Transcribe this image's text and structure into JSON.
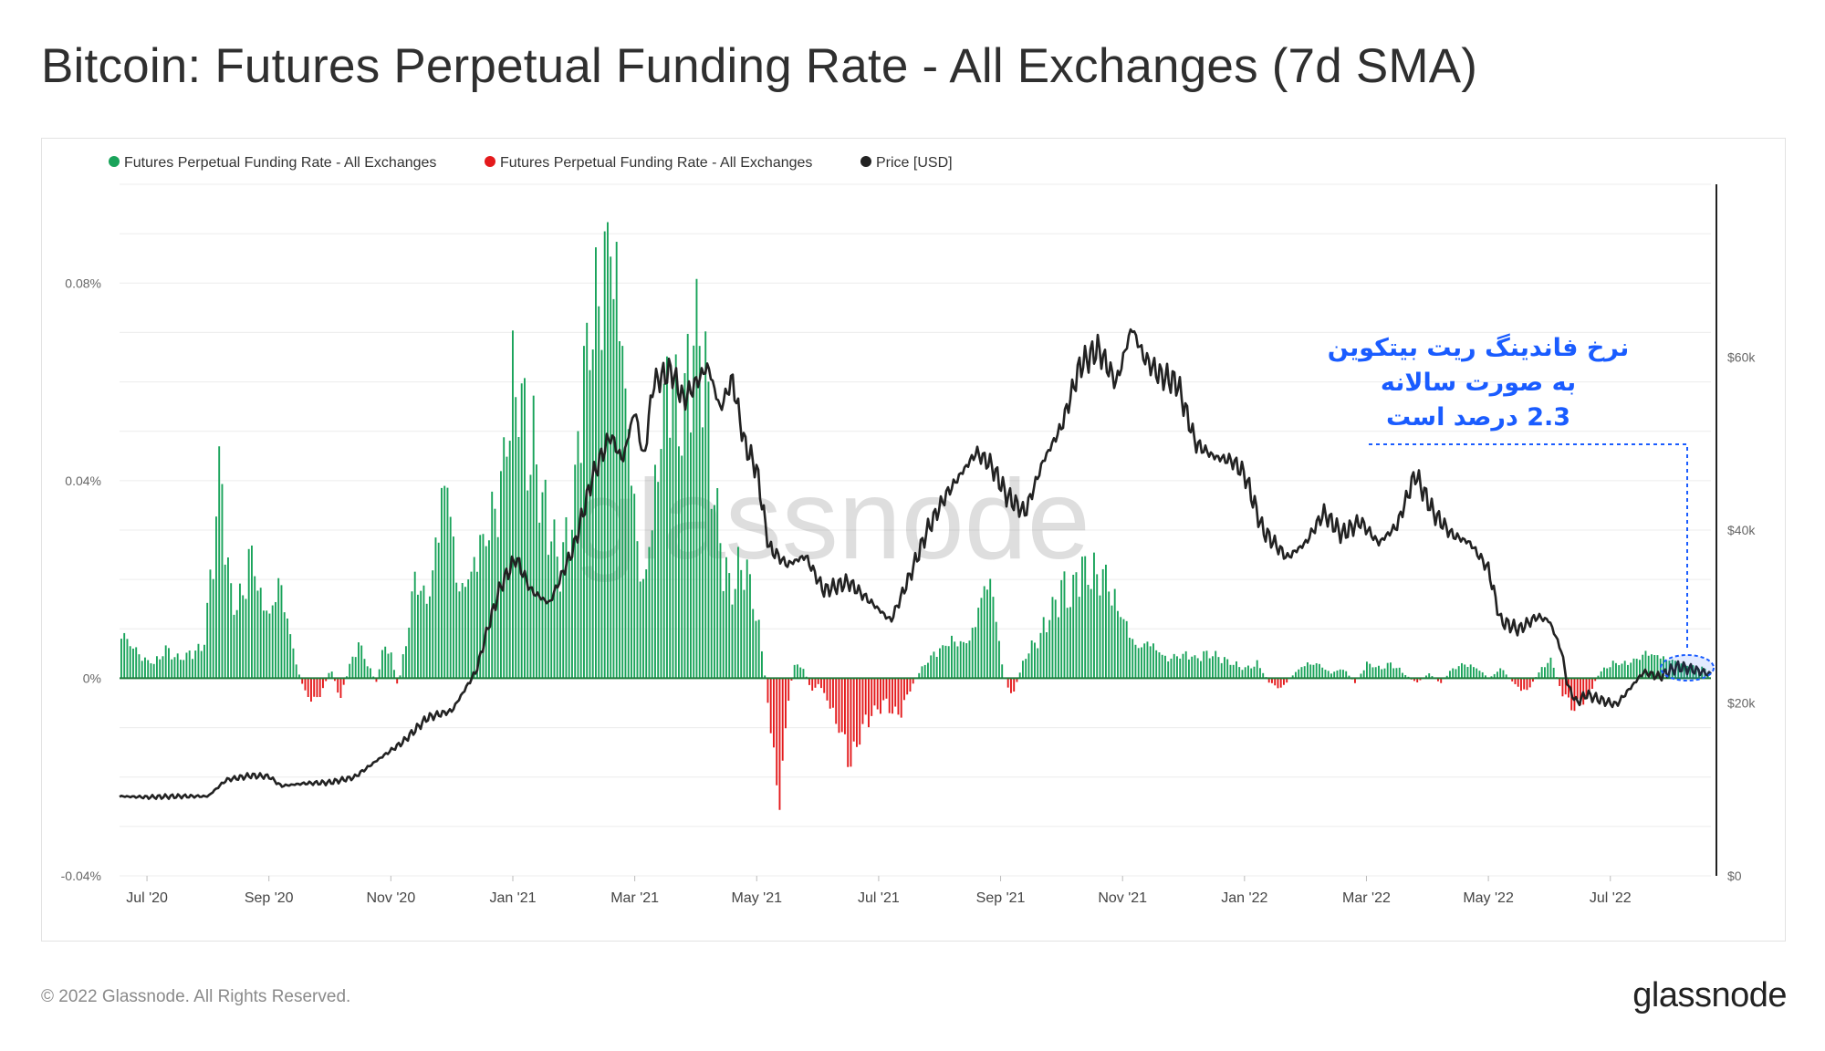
{
  "title": "Bitcoin: Futures Perpetual Funding Rate - All Exchanges (7d SMA)",
  "footer": {
    "copyright": "© 2022 Glassnode. All Rights Reserved.",
    "logo": "glassnode"
  },
  "watermark": "glassnode",
  "annotation": {
    "lines": [
      "نرخ فاندینگ ریت بیتکوین",
      "به صورت سالانه",
      "2.3 درصد است"
    ],
    "color": "#1a5cff"
  },
  "colors": {
    "positive": "#19a35a",
    "negative": "#e41a1c",
    "price": "#222222",
    "grid": "#ececec"
  },
  "chart_data": {
    "type": "bar+line",
    "title": "Bitcoin: Futures Perpetual Funding Rate - All Exchanges (7d SMA)",
    "legend": [
      {
        "label": "Futures Perpetual Funding Rate - All Exchanges",
        "color": "#19a35a"
      },
      {
        "label": "Futures Perpetual Funding Rate - All Exchanges",
        "color": "#e41a1c"
      },
      {
        "label": "Price [USD]",
        "color": "#222222"
      }
    ],
    "legend_position": "top-left",
    "x_ticks": [
      "Jul '20",
      "Sep '20",
      "Nov '20",
      "Jan '21",
      "Mar '21",
      "May '21",
      "Jul '21",
      "Sep '21",
      "Nov '21",
      "Jan '22",
      "Mar '22",
      "May '22",
      "Jul '22"
    ],
    "x_tick_months": [
      1,
      3,
      5,
      7,
      9,
      11,
      13,
      15,
      17,
      19,
      21,
      23,
      25
    ],
    "x_range_months": [
      0.55,
      26.65
    ],
    "y_left": {
      "ticks": [
        "0.08%",
        "0.04%",
        "0%",
        "-0.04%"
      ],
      "tick_values": [
        0.08,
        0.04,
        0,
        -0.04
      ],
      "range": [
        -0.04,
        0.1
      ],
      "unit": "%"
    },
    "y_right": {
      "ticks": [
        "$60k",
        "$40k",
        "$20k",
        "$0"
      ],
      "tick_values": [
        60000,
        40000,
        20000,
        0
      ],
      "range": [
        0,
        80000
      ]
    },
    "funding_rate_series": {
      "name": "Futures Perpetual Funding Rate - All Exchanges (7d SMA, %)",
      "anchors_month_value": [
        [
          0.55,
          0.009
        ],
        [
          0.7,
          0.007
        ],
        [
          0.9,
          0.004
        ],
        [
          1.1,
          0.003
        ],
        [
          1.3,
          0.006
        ],
        [
          1.5,
          0.004
        ],
        [
          1.7,
          0.005
        ],
        [
          1.9,
          0.006
        ],
        [
          2.0,
          0.015
        ],
        [
          2.1,
          0.03
        ],
        [
          2.2,
          0.044
        ],
        [
          2.3,
          0.022
        ],
        [
          2.45,
          0.014
        ],
        [
          2.6,
          0.02
        ],
        [
          2.7,
          0.026
        ],
        [
          2.85,
          0.016
        ],
        [
          3.0,
          0.012
        ],
        [
          3.15,
          0.019
        ],
        [
          3.3,
          0.011
        ],
        [
          3.45,
          0.002
        ],
        [
          3.55,
          -0.002
        ],
        [
          3.7,
          -0.005
        ],
        [
          3.85,
          -0.003
        ],
        [
          4.0,
          0.002
        ],
        [
          4.15,
          -0.004
        ],
        [
          4.3,
          0.002
        ],
        [
          4.45,
          0.007
        ],
        [
          4.6,
          0.003
        ],
        [
          4.75,
          -0.001
        ],
        [
          4.9,
          0.008
        ],
        [
          5.0,
          0.004
        ],
        [
          5.1,
          -0.002
        ],
        [
          5.3,
          0.012
        ],
        [
          5.4,
          0.022
        ],
        [
          5.5,
          0.015
        ],
        [
          5.65,
          0.018
        ],
        [
          5.8,
          0.035
        ],
        [
          5.9,
          0.043
        ],
        [
          6.05,
          0.022
        ],
        [
          6.15,
          0.018
        ],
        [
          6.3,
          0.022
        ],
        [
          6.45,
          0.026
        ],
        [
          6.6,
          0.03
        ],
        [
          6.75,
          0.034
        ],
        [
          6.85,
          0.044
        ],
        [
          6.95,
          0.055
        ],
        [
          7.05,
          0.062
        ],
        [
          7.2,
          0.05
        ],
        [
          7.35,
          0.046
        ],
        [
          7.5,
          0.034
        ],
        [
          7.6,
          0.03
        ],
        [
          7.75,
          0.022
        ],
        [
          7.9,
          0.028
        ],
        [
          8.0,
          0.036
        ],
        [
          8.1,
          0.055
        ],
        [
          8.2,
          0.068
        ],
        [
          8.3,
          0.074
        ],
        [
          8.4,
          0.08
        ],
        [
          8.5,
          0.086
        ],
        [
          8.6,
          0.091
        ],
        [
          8.7,
          0.078
        ],
        [
          8.8,
          0.062
        ],
        [
          8.95,
          0.038
        ],
        [
          9.05,
          0.022
        ],
        [
          9.15,
          0.018
        ],
        [
          9.3,
          0.035
        ],
        [
          9.45,
          0.055
        ],
        [
          9.6,
          0.065
        ],
        [
          9.7,
          0.05
        ],
        [
          9.8,
          0.058
        ],
        [
          9.9,
          0.064
        ],
        [
          10.05,
          0.07
        ],
        [
          10.15,
          0.058
        ],
        [
          10.3,
          0.035
        ],
        [
          10.45,
          0.022
        ],
        [
          10.6,
          0.018
        ],
        [
          10.75,
          0.025
        ],
        [
          10.9,
          0.018
        ],
        [
          11.05,
          0.008
        ],
        [
          11.2,
          -0.008
        ],
        [
          11.3,
          -0.02
        ],
        [
          11.37,
          -0.023
        ],
        [
          11.5,
          -0.005
        ],
        [
          11.6,
          0.003
        ],
        [
          11.75,
          0.002
        ],
        [
          11.9,
          -0.003
        ],
        [
          12.0,
          -0.001
        ],
        [
          12.2,
          -0.006
        ],
        [
          12.4,
          -0.012
        ],
        [
          12.55,
          -0.017
        ],
        [
          12.7,
          -0.01
        ],
        [
          12.9,
          -0.007
        ],
        [
          13.1,
          -0.005
        ],
        [
          13.3,
          -0.008
        ],
        [
          13.55,
          -0.001
        ],
        [
          13.75,
          0.003
        ],
        [
          14.0,
          0.006
        ],
        [
          14.2,
          0.008
        ],
        [
          14.4,
          0.007
        ],
        [
          14.55,
          0.01
        ],
        [
          14.75,
          0.02
        ],
        [
          14.9,
          0.014
        ],
        [
          15.0,
          0.003
        ],
        [
          15.1,
          -0.002
        ],
        [
          15.2,
          -0.003
        ],
        [
          15.4,
          0.005
        ],
        [
          15.6,
          0.008
        ],
        [
          15.8,
          0.013
        ],
        [
          16.0,
          0.018
        ],
        [
          16.15,
          0.016
        ],
        [
          16.3,
          0.023
        ],
        [
          16.45,
          0.021
        ],
        [
          16.6,
          0.022
        ],
        [
          16.75,
          0.02
        ],
        [
          16.9,
          0.014
        ],
        [
          17.0,
          0.012
        ],
        [
          17.2,
          0.006
        ],
        [
          17.45,
          0.007
        ],
        [
          17.7,
          0.004
        ],
        [
          18.0,
          0.005
        ],
        [
          18.2,
          0.004
        ],
        [
          18.4,
          0.005
        ],
        [
          18.6,
          0.004
        ],
        [
          18.8,
          0.003
        ],
        [
          19.0,
          0.002
        ],
        [
          19.2,
          0.003
        ],
        [
          19.4,
          -0.001
        ],
        [
          19.6,
          -0.002
        ],
        [
          19.8,
          0.001
        ],
        [
          20.0,
          0.003
        ],
        [
          20.2,
          0.003
        ],
        [
          20.4,
          0.001
        ],
        [
          20.6,
          0.002
        ],
        [
          20.8,
          -0.001
        ],
        [
          21.0,
          0.003
        ],
        [
          21.2,
          0.002
        ],
        [
          21.4,
          0.003
        ],
        [
          21.6,
          0.001
        ],
        [
          21.8,
          -0.001
        ],
        [
          22.0,
          0.001
        ],
        [
          22.2,
          -0.001
        ],
        [
          22.4,
          0.002
        ],
        [
          22.6,
          0.003
        ],
        [
          22.8,
          0.002
        ],
        [
          23.0,
          0.0
        ],
        [
          23.2,
          0.002
        ],
        [
          23.4,
          -0.001
        ],
        [
          23.6,
          -0.003
        ],
        [
          23.8,
          0.001
        ],
        [
          24.0,
          0.004
        ],
        [
          24.2,
          -0.003
        ],
        [
          24.4,
          -0.006
        ],
        [
          24.6,
          -0.004
        ],
        [
          24.8,
          0.001
        ],
        [
          25.0,
          0.003
        ],
        [
          25.3,
          0.003
        ],
        [
          25.6,
          0.005
        ],
        [
          25.9,
          0.004
        ],
        [
          26.2,
          0.003
        ],
        [
          26.5,
          0.002
        ],
        [
          26.65,
          0.001
        ]
      ],
      "peak": {
        "month": 8.6,
        "value": 0.091
      },
      "trough": {
        "month": 11.37,
        "value": -0.023
      }
    },
    "price_series": {
      "name": "Price [USD]",
      "anchors_month_value": [
        [
          0.55,
          9200
        ],
        [
          1.0,
          9100
        ],
        [
          1.5,
          9200
        ],
        [
          2.0,
          9200
        ],
        [
          2.3,
          11100
        ],
        [
          2.7,
          11600
        ],
        [
          3.0,
          11500
        ],
        [
          3.2,
          10400
        ],
        [
          3.6,
          10700
        ],
        [
          4.0,
          10800
        ],
        [
          4.4,
          11400
        ],
        [
          4.8,
          13500
        ],
        [
          5.2,
          15500
        ],
        [
          5.6,
          18300
        ],
        [
          6.0,
          19100
        ],
        [
          6.4,
          23700
        ],
        [
          6.6,
          28900
        ],
        [
          6.8,
          33500
        ],
        [
          7.05,
          36800
        ],
        [
          7.3,
          33000
        ],
        [
          7.6,
          31500
        ],
        [
          8.0,
          38000
        ],
        [
          8.3,
          46000
        ],
        [
          8.6,
          51000
        ],
        [
          8.8,
          48000
        ],
        [
          9.0,
          54000
        ],
        [
          9.15,
          48000
        ],
        [
          9.3,
          57000
        ],
        [
          9.6,
          58500
        ],
        [
          9.8,
          55000
        ],
        [
          10.2,
          59000
        ],
        [
          10.4,
          54000
        ],
        [
          10.6,
          57500
        ],
        [
          10.8,
          50000
        ],
        [
          11.0,
          47000
        ],
        [
          11.2,
          38000
        ],
        [
          11.5,
          36000
        ],
        [
          11.8,
          37000
        ],
        [
          12.1,
          33000
        ],
        [
          12.5,
          34000
        ],
        [
          12.9,
          31500
        ],
        [
          13.2,
          29500
        ],
        [
          13.5,
          34500
        ],
        [
          13.8,
          40000
        ],
        [
          14.1,
          44000
        ],
        [
          14.4,
          47000
        ],
        [
          14.6,
          49000
        ],
        [
          14.85,
          47500
        ],
        [
          15.1,
          44000
        ],
        [
          15.4,
          42000
        ],
        [
          15.7,
          48000
        ],
        [
          16.0,
          52000
        ],
        [
          16.3,
          59000
        ],
        [
          16.6,
          61000
        ],
        [
          16.9,
          57000
        ],
        [
          17.15,
          63500
        ],
        [
          17.35,
          60000
        ],
        [
          17.6,
          58000
        ],
        [
          17.9,
          57000
        ],
        [
          18.2,
          50000
        ],
        [
          18.5,
          48500
        ],
        [
          18.8,
          48000
        ],
        [
          19.0,
          46500
        ],
        [
          19.3,
          40000
        ],
        [
          19.7,
          36800
        ],
        [
          20.0,
          38500
        ],
        [
          20.3,
          42000
        ],
        [
          20.6,
          39500
        ],
        [
          20.9,
          41000
        ],
        [
          21.2,
          38500
        ],
        [
          21.5,
          40500
        ],
        [
          21.8,
          46500
        ],
        [
          22.1,
          42000
        ],
        [
          22.4,
          39500
        ],
        [
          22.7,
          38500
        ],
        [
          23.0,
          35500
        ],
        [
          23.2,
          29500
        ],
        [
          23.5,
          28500
        ],
        [
          23.8,
          30000
        ],
        [
          24.0,
          29500
        ],
        [
          24.2,
          26000
        ],
        [
          24.3,
          22000
        ],
        [
          24.45,
          20000
        ],
        [
          24.6,
          21000
        ],
        [
          24.9,
          20200
        ],
        [
          25.1,
          19800
        ],
        [
          25.3,
          21500
        ],
        [
          25.55,
          23600
        ],
        [
          25.8,
          23000
        ],
        [
          26.1,
          24200
        ],
        [
          26.4,
          23800
        ],
        [
          26.65,
          23300
        ]
      ]
    }
  }
}
